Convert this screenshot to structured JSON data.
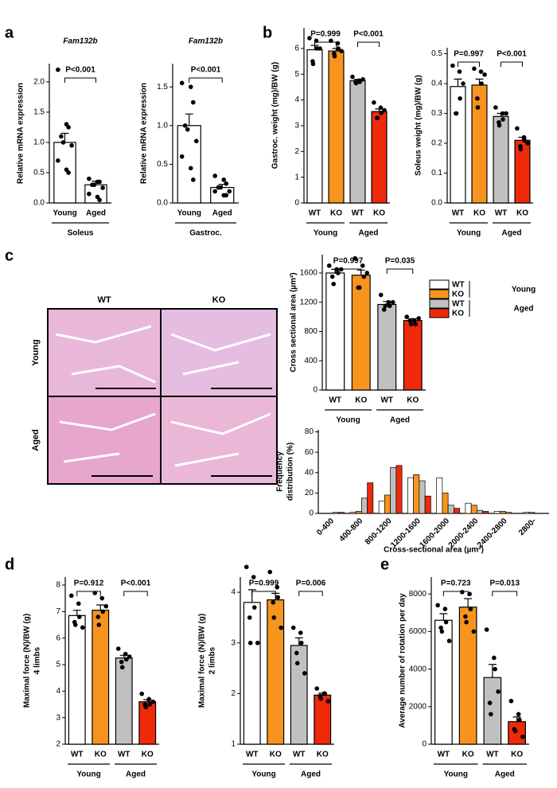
{
  "panels": [
    "a",
    "b",
    "c",
    "d",
    "e"
  ],
  "histology": {
    "columns": [
      "WT",
      "KO"
    ],
    "rows": [
      "Young",
      "Aged"
    ]
  },
  "chart_data": [
    {
      "type": "bar",
      "title": "Fam132b",
      "ylabel": "Relative mRNA expression",
      "xlabel": "Soleus",
      "categories": [
        "Young",
        "Aged"
      ],
      "values": [
        1.0,
        0.3
      ],
      "errors": [
        0.15,
        0.06
      ],
      "colors": [
        "#ffffff",
        "#ffffff"
      ],
      "points": [
        [
          2.2,
          1.3,
          1.25,
          1.1,
          1.0,
          0.95,
          0.7,
          0.55,
          0.5
        ],
        [
          0.4,
          0.35,
          0.35,
          0.3,
          0.3,
          0.25,
          0.15,
          0.1,
          0.05
        ]
      ],
      "comparisons": [
        "P<0.001"
      ],
      "ylim": [
        0,
        2.3
      ],
      "yticks": [
        {
          "value": 0,
          "label": "0.0"
        },
        0.5,
        {
          "value": 1,
          "label": "1.0"
        },
        1.5,
        {
          "value": 2,
          "label": "2.0"
        }
      ]
    },
    {
      "type": "bar",
      "title": "Fam132b",
      "ylabel": "Relative mRNA expression",
      "xlabel": "Gastroc.",
      "categories": [
        "Young",
        "Aged"
      ],
      "values": [
        1.0,
        0.2
      ],
      "errors": [
        0.15,
        0.04
      ],
      "colors": [
        "#ffffff",
        "#ffffff"
      ],
      "points": [
        [
          1.55,
          1.5,
          1.3,
          1.0,
          0.95,
          0.8,
          0.6,
          0.45,
          0.3
        ],
        [
          0.35,
          0.3,
          0.25,
          0.2,
          0.2,
          0.15,
          0.15,
          0.1,
          0.1
        ]
      ],
      "comparisons": [
        "P<0.001"
      ],
      "ylim": [
        0,
        1.8
      ],
      "yticks": [
        {
          "value": 0,
          "label": "0.0"
        },
        0.5,
        {
          "value": 1,
          "label": "1.0"
        },
        1.5
      ]
    },
    {
      "type": "bar",
      "ylabel": "Gastroc. weight (mg)/BW (g)",
      "groups": [
        "Young",
        "Aged"
      ],
      "categories": [
        "WT",
        "KO",
        "WT",
        "KO"
      ],
      "values": [
        5.95,
        5.9,
        4.75,
        3.55
      ],
      "errors": [
        0.17,
        0.1,
        0.05,
        0.1
      ],
      "colors": [
        "#ffffff",
        "#f7941d",
        "#c0c0c0",
        "#ee2a0b"
      ],
      "points": [
        [
          6.4,
          6.3,
          6.0,
          5.5,
          5.4,
          6.0
        ],
        [
          6.3,
          6.2,
          6.0,
          5.8,
          5.7,
          5.9
        ],
        [
          4.9,
          4.75,
          4.7,
          4.7,
          4.65,
          4.8
        ],
        [
          3.9,
          3.7,
          3.5,
          3.3,
          3.3,
          3.6
        ]
      ],
      "comparisons": [
        "P=0.999",
        "P<0.001"
      ],
      "ylim": [
        0,
        6.8
      ],
      "yticks": [
        0,
        1,
        2,
        3,
        4,
        5,
        6
      ]
    },
    {
      "type": "bar",
      "ylabel": "Soleus weight (mg)/BW (g)",
      "groups": [
        "Young",
        "Aged"
      ],
      "categories": [
        "WT",
        "KO",
        "WT",
        "KO"
      ],
      "values": [
        0.39,
        0.395,
        0.29,
        0.21
      ],
      "errors": [
        0.025,
        0.02,
        0.01,
        0.01
      ],
      "colors": [
        "#ffffff",
        "#f7941d",
        "#c0c0c0",
        "#ee2a0b"
      ],
      "points": [
        [
          0.46,
          0.44,
          0.35,
          0.3,
          0.3,
          0.4
        ],
        [
          0.45,
          0.44,
          0.4,
          0.35,
          0.32,
          0.43
        ],
        [
          0.32,
          0.3,
          0.28,
          0.27,
          0.26,
          0.3
        ],
        [
          0.25,
          0.22,
          0.21,
          0.19,
          0.18,
          0.2
        ]
      ],
      "comparisons": [
        "P=0.997",
        "P<0.001"
      ],
      "ylim": [
        0,
        0.52
      ],
      "yticks": [
        {
          "value": 0,
          "label": "0.0"
        },
        0.1,
        0.2,
        0.3,
        0.4,
        0.5
      ]
    },
    {
      "type": "bar",
      "ylabel": "Cross sectional area (µm²)",
      "groups": [
        "Young",
        "Aged"
      ],
      "categories": [
        "WT",
        "KO",
        "WT",
        "KO"
      ],
      "values": [
        1600,
        1570,
        1170,
        950
      ],
      "errors": [
        50,
        70,
        40,
        25
      ],
      "colors": [
        "#ffffff",
        "#f7941d",
        "#c0c0c0",
        "#ee2a0b"
      ],
      "points": [
        [
          1700,
          1650,
          1600,
          1550,
          1450,
          1650
        ],
        [
          1800,
          1700,
          1550,
          1400,
          1400,
          1600
        ],
        [
          1300,
          1200,
          1150,
          1100,
          1150,
          1200
        ],
        [
          1000,
          950,
          900,
          950,
          900,
          980
        ]
      ],
      "comparisons": [
        "P=0.997",
        "P=0.035"
      ],
      "ylim": [
        0,
        1850
      ],
      "yticks": [
        0,
        400,
        800,
        1200,
        1600
      ],
      "legend": {
        "entries": [
          {
            "name": "WT",
            "color": "#ffffff"
          },
          {
            "name": "KO",
            "color": "#f7941d"
          },
          {
            "name": "WT",
            "color": "#c0c0c0"
          },
          {
            "name": "KO",
            "color": "#ee2a0b"
          }
        ],
        "groups": [
          "Young",
          "Aged"
        ]
      }
    },
    {
      "type": "grouped_bar",
      "ylabel": "Frequency",
      "ylabel2": "distribution (%)",
      "xlabel": "Cross-sectional area (µm²)",
      "categories": [
        "0-400",
        "400-800",
        "800-1200",
        "1200-1600",
        "1600-2000",
        "2000-2400",
        "2400-2800",
        "2800-"
      ],
      "series": [
        {
          "color": "#ffffff",
          "values": [
            0,
            1,
            12,
            35,
            35,
            10,
            2,
            1
          ]
        },
        {
          "color": "#f7941d",
          "values": [
            0,
            2,
            18,
            38,
            20,
            8,
            2,
            1
          ]
        },
        {
          "color": "#c0c0c0",
          "values": [
            1,
            15,
            45,
            32,
            8,
            3,
            1,
            0
          ]
        },
        {
          "color": "#ee2a0b",
          "values": [
            1,
            30,
            47,
            17,
            5,
            2,
            0,
            0
          ]
        }
      ],
      "ylim": [
        0,
        82
      ],
      "yticks": [
        0,
        20,
        40,
        60,
        80
      ]
    },
    {
      "type": "bar",
      "ylabel": "Maximal force (N)/BW (g)",
      "ylabel2": "4 limbs",
      "groups": [
        "Young",
        "Aged"
      ],
      "categories": [
        "WT",
        "KO",
        "WT",
        "KO"
      ],
      "values": [
        6.85,
        7.05,
        5.25,
        3.6
      ],
      "errors": [
        0.2,
        0.2,
        0.1,
        0.08
      ],
      "colors": [
        "#ffffff",
        "#f7941d",
        "#c0c0c0",
        "#ee2a0b"
      ],
      "points": [
        [
          7.6,
          7.3,
          6.8,
          6.6,
          6.5,
          6.4
        ],
        [
          7.7,
          7.5,
          7.0,
          6.8,
          6.5,
          7.2
        ],
        [
          5.6,
          5.4,
          5.2,
          5.1,
          4.9,
          5.3
        ],
        [
          3.9,
          3.7,
          3.5,
          3.5,
          3.4,
          3.6
        ]
      ],
      "comparisons": [
        "P=0.912",
        "P<0.001"
      ],
      "ylim": [
        2,
        8.3
      ],
      "yticks": [
        2,
        3,
        4,
        5,
        6,
        7,
        8
      ]
    },
    {
      "type": "bar",
      "ylabel": "Maximal force (N)/BW (g)",
      "ylabel2": "2 limbs",
      "groups": [
        "Young",
        "Aged"
      ],
      "categories": [
        "WT",
        "KO",
        "WT",
        "KO"
      ],
      "values": [
        3.8,
        3.85,
        2.95,
        1.97
      ],
      "errors": [
        0.25,
        0.13,
        0.15,
        0.04
      ],
      "colors": [
        "#ffffff",
        "#f7941d",
        "#c0c0c0",
        "#ee2a0b"
      ],
      "points": [
        [
          4.5,
          4.3,
          3.7,
          3.5,
          3.0,
          3.0
        ],
        [
          4.4,
          4.1,
          3.9,
          3.8,
          3.5,
          3.3
        ],
        [
          3.3,
          3.2,
          3.0,
          2.8,
          2.6,
          2.4
        ],
        [
          2.1,
          2.0,
          2.0,
          1.95,
          1.9,
          1.85
        ]
      ],
      "comparisons": [
        "P=0.999",
        "P=0.006"
      ],
      "ylim": [
        1,
        4.3
      ],
      "yticks": [
        1,
        2,
        3,
        4
      ]
    },
    {
      "type": "bar",
      "ylabel": "Average number of rotation per day",
      "groups": [
        "Young",
        "Aged"
      ],
      "categories": [
        "WT",
        "KO",
        "WT",
        "KO"
      ],
      "values": [
        6600,
        7300,
        3550,
        1200
      ],
      "errors": [
        350,
        450,
        700,
        250
      ],
      "colors": [
        "#ffffff",
        "#f7941d",
        "#c0c0c0",
        "#ee2a0b"
      ],
      "points": [
        [
          7400,
          7200,
          6500,
          6200,
          6000,
          5500
        ],
        [
          8100,
          8000,
          7200,
          6800,
          6500,
          6000
        ],
        [
          6100,
          4600,
          4000,
          2200,
          1600,
          2800
        ],
        [
          2300,
          1600,
          1300,
          800,
          700,
          400
        ]
      ],
      "comparisons": [
        "P=0.723",
        "P=0.013"
      ],
      "ylim": [
        0,
        8900
      ],
      "yticks": [
        0,
        2000,
        4000,
        6000,
        8000
      ]
    }
  ]
}
